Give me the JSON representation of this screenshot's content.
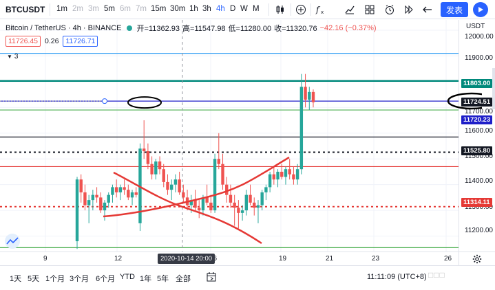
{
  "toolbar": {
    "symbol": "BTCUSDT",
    "intervals": [
      {
        "label": "1m",
        "state": "normal"
      },
      {
        "label": "2m",
        "state": "dim"
      },
      {
        "label": "3m",
        "state": "dim"
      },
      {
        "label": "5m",
        "state": "normal"
      },
      {
        "label": "6m",
        "state": "dim"
      },
      {
        "label": "7m",
        "state": "dim"
      },
      {
        "label": "15m",
        "state": "normal"
      },
      {
        "label": "30m",
        "state": "normal"
      },
      {
        "label": "1h",
        "state": "normal"
      },
      {
        "label": "3h",
        "state": "normal"
      },
      {
        "label": "4h",
        "state": "active"
      },
      {
        "label": "D",
        "state": "normal"
      },
      {
        "label": "W",
        "state": "normal"
      },
      {
        "label": "M",
        "state": "normal"
      }
    ],
    "publish_label": "发表"
  },
  "legend": {
    "title": "Bitcoin / TetherUS · 4h · BINANCE",
    "open_label": "开=",
    "open": "11362.93",
    "high_label": "高=",
    "high": "11547.98",
    "low_label": "低=",
    "low": "11280.00",
    "close_label": "收=",
    "close": "11320.76",
    "change": "−42.16 (−0.37%)",
    "bid": "11726.45",
    "spread": "0.26",
    "ask": "11726.71",
    "drawings_count": "3"
  },
  "price_scale": {
    "currency": "USDT",
    "ticks": [
      "12000.00",
      "11900.00",
      "11700.00",
      "11600.00",
      "11500.00",
      "11400.00",
      "11300.00",
      "11200.00"
    ],
    "labels": [
      {
        "text": "11803.00",
        "color": "#00897b"
      },
      {
        "text": "11724.51",
        "color": "#131722"
      },
      {
        "text": "11720.23",
        "color": "#1e1ec8"
      },
      {
        "text": "11525.80",
        "color": "#131722"
      },
      {
        "text": "11314.11",
        "color": "#e53935"
      }
    ]
  },
  "time_scale": {
    "ticks": [
      "9",
      "12",
      "16",
      "19",
      "21",
      "23",
      "26"
    ],
    "crosshair": "2020-10-14  20:00"
  },
  "chart_data": {
    "type": "candlestick",
    "title": "Bitcoin / TetherUS · 4h · BINANCE",
    "ylim": [
      11140,
      12040
    ],
    "horizontal_levels": [
      {
        "price": 11910,
        "color": "#2196f3",
        "style": "solid"
      },
      {
        "price": 11803,
        "color": "#00897b",
        "style": "solid"
      },
      {
        "price": 11724.51,
        "color": "#1e1ec8",
        "style": "solid"
      },
      {
        "price": 11690,
        "color": "#4caf50",
        "style": "solid"
      },
      {
        "price": 11585,
        "color": "#131722",
        "style": "solid"
      },
      {
        "price": 11525.8,
        "color": "#131722",
        "style": "dotted"
      },
      {
        "price": 11470,
        "color": "#e53935",
        "style": "solid"
      },
      {
        "price": 11314.11,
        "color": "#e53935",
        "style": "dotted"
      },
      {
        "price": 11155,
        "color": "#4caf50",
        "style": "solid"
      }
    ],
    "candles": [
      [
        11180,
        11430,
        11150,
        11420
      ],
      [
        11420,
        11440,
        11330,
        11370
      ],
      [
        11370,
        11400,
        11300,
        11320
      ],
      [
        11320,
        11360,
        11250,
        11340
      ],
      [
        11340,
        11380,
        11300,
        11360
      ],
      [
        11360,
        11390,
        11330,
        11350
      ],
      [
        11350,
        11370,
        11290,
        11300
      ],
      [
        11300,
        11340,
        11260,
        11330
      ],
      [
        11330,
        11370,
        11310,
        11360
      ],
      [
        11360,
        11400,
        11330,
        11390
      ],
      [
        11390,
        11420,
        11350,
        11370
      ],
      [
        11370,
        11400,
        11340,
        11390
      ],
      [
        11390,
        11420,
        11360,
        11380
      ],
      [
        11380,
        11400,
        11340,
        11350
      ],
      [
        11350,
        11380,
        11320,
        11370
      ],
      [
        11370,
        11390,
        11350,
        11360
      ],
      [
        11250,
        11560,
        11220,
        11540
      ],
      [
        11540,
        11650,
        11500,
        11530
      ],
      [
        11530,
        11560,
        11460,
        11480
      ],
      [
        11480,
        11510,
        11420,
        11440
      ],
      [
        11440,
        11500,
        11420,
        11490
      ],
      [
        11490,
        11510,
        11440,
        11460
      ],
      [
        11460,
        11480,
        11390,
        11410
      ],
      [
        11410,
        11440,
        11360,
        11380
      ],
      [
        11380,
        11420,
        11340,
        11400
      ],
      [
        11400,
        11440,
        11370,
        11420
      ],
      [
        11420,
        11450,
        11360,
        11370
      ],
      [
        11370,
        11400,
        11330,
        11350
      ],
      [
        11350,
        11380,
        11300,
        11320
      ],
      [
        11320,
        11360,
        11290,
        11340
      ],
      [
        11340,
        11380,
        11300,
        11310
      ],
      [
        11310,
        11340,
        11270,
        11300
      ],
      [
        11300,
        11360,
        11280,
        11350
      ],
      [
        11350,
        11400,
        11320,
        11330
      ],
      [
        11330,
        11360,
        11290,
        11300
      ],
      [
        11300,
        11520,
        11290,
        11500
      ],
      [
        11500,
        11600,
        11460,
        11480
      ],
      [
        11480,
        11520,
        11380,
        11400
      ],
      [
        11400,
        11430,
        11330,
        11360
      ],
      [
        11360,
        11400,
        11310,
        11330
      ],
      [
        11330,
        11360,
        11240,
        11310
      ],
      [
        11310,
        11340,
        11230,
        11290
      ],
      [
        11290,
        11320,
        11260,
        11300
      ],
      [
        11300,
        11380,
        11280,
        11360
      ],
      [
        11360,
        11400,
        11320,
        11330
      ],
      [
        11330,
        11350,
        11280,
        11310
      ],
      [
        11310,
        11340,
        11250,
        11320
      ],
      [
        11320,
        11380,
        11300,
        11370
      ],
      [
        11370,
        11400,
        11340,
        11390
      ],
      [
        11390,
        11450,
        11370,
        11440
      ],
      [
        11440,
        11470,
        11400,
        11420
      ],
      [
        11420,
        11460,
        11390,
        11450
      ],
      [
        11450,
        11480,
        11420,
        11430
      ],
      [
        11430,
        11470,
        11400,
        11460
      ],
      [
        11460,
        11500,
        11420,
        11440
      ],
      [
        11440,
        11470,
        11400,
        11420
      ],
      [
        11420,
        11480,
        11400,
        11460
      ],
      [
        11460,
        11830,
        11440,
        11780
      ],
      [
        11780,
        11830,
        11700,
        11730
      ],
      [
        11730,
        11780,
        11690,
        11760
      ],
      [
        11760,
        11770,
        11700,
        11720
      ]
    ]
  }
}
